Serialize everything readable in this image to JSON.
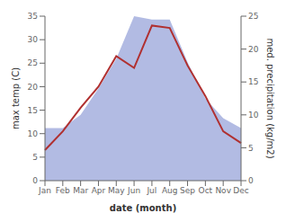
{
  "chart_data": {
    "type": "line",
    "xlabel": "date (month)",
    "ylabel": "max temp (C)",
    "y2label": "med. precipitation (kg/m2)",
    "categories": [
      "Jan",
      "Feb",
      "Mar",
      "Apr",
      "May",
      "Jun",
      "Jul",
      "Aug",
      "Sep",
      "Oct",
      "Nov",
      "Dec"
    ],
    "series": [
      {
        "type": "area",
        "axis": "y2",
        "color": "#aab4e0",
        "values": [
          8.0,
          8.0,
          10.0,
          14.0,
          18.5,
          25.0,
          24.5,
          24.5,
          18.0,
          12.5,
          9.5,
          8.0
        ]
      },
      {
        "type": "line",
        "color": "#b03030",
        "values": [
          6.5,
          10.5,
          15.5,
          20.0,
          26.5,
          24.0,
          33.0,
          32.5,
          24.5,
          18.0,
          10.5,
          8.0
        ]
      }
    ],
    "ylim": [
      0,
      35
    ],
    "yticks": [
      0,
      5,
      10,
      15,
      20,
      25,
      30,
      35
    ],
    "y2lim": [
      0,
      25
    ],
    "y2ticks": [
      0,
      5,
      10,
      15,
      20,
      25
    ],
    "grid": false
  }
}
